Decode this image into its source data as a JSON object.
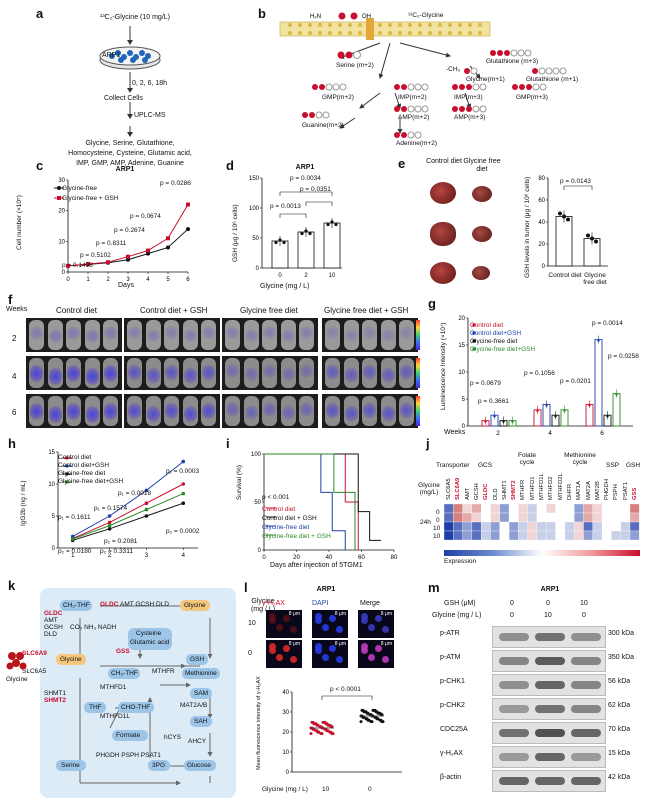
{
  "a": {
    "label": "a",
    "tracer": "¹³C₂-Glycine (10 mg/L)",
    "cell": "ARP1",
    "times": "0, 2, 6, 18h",
    "step1": "Collect Cells",
    "step2": "UPLC-MS",
    "metabolites": [
      "Glycine, Serine, Glutathione,",
      "Homocysteine, Cysteine, Glutamic acid,",
      "IMP, GMP, AMP, Adenine, Guanine"
    ]
  },
  "b": {
    "label": "b",
    "glycine_label": "¹³C₂-Glycine",
    "nodes": [
      "Serine (m+2)",
      "Glutathione (m+3)",
      "Glycine(m+1)",
      "Glutathione (m+1)",
      "GMP(m+2)",
      "IMP(m+2)",
      "IMP(m+3)",
      "GMP(m+3)",
      "AMP(m+2)",
      "AMP(m+3)",
      "Guanine(m+2)",
      "Adenine(m+2)"
    ],
    "ch3": "-CH₃"
  },
  "c": {
    "label": "c",
    "title": "ARP1",
    "legend": [
      "Glycine-free",
      "Glycine-free + GSH"
    ],
    "xlabel": "Days",
    "ylabel": "Cell number (×10⁵)",
    "pvals": [
      "p = 0.0286",
      "p = 0.0674",
      "p = 0.2674",
      "p = 0.8311",
      "p = 0.5102",
      "p = 0.1498"
    ]
  },
  "d": {
    "label": "d",
    "title": "ARP1",
    "ylabel": "GSH (μg / 10⁶ cells)",
    "xlabel": "Glycine (mg / L)",
    "pvals": [
      "p = 0.0034",
      "p = 0.0351",
      "p = 0.0013"
    ]
  },
  "e": {
    "label": "e",
    "cols": [
      "Control diet",
      "Glycine free diet"
    ],
    "ylabel": "GSH levels in tumor (μg / 10⁶ cells)",
    "pval": "p = 0.0143"
  },
  "f": {
    "label": "f",
    "weeks_label": "Weeks",
    "groups": [
      "Control diet",
      "Control diet + GSH",
      "Glycine free diet",
      "Glycine free diet + GSH"
    ],
    "rows": [
      "2",
      "4",
      "6"
    ]
  },
  "g": {
    "label": "g",
    "ylabel": "Luminescence Intensity (×10⁷)",
    "legend": [
      "Control diet",
      "Control diet+GSH",
      "Glycine-free diet",
      "Glycine-free diet+GSH"
    ],
    "weeks_label": "Weeks",
    "pvals": [
      "p = 0.0014",
      "p = 0.0258",
      "p = 0.0201",
      "p = 0.1056",
      "p = 0.0679",
      "p = 0.3661"
    ]
  },
  "h": {
    "label": "h",
    "ylabel": "IgG2b (ng / mL)",
    "legend": [
      "Control diet",
      "Control diet+GSH",
      "Glycine-free diet",
      "Glycine-free diet+GSH"
    ],
    "pvals": [
      "p₁ = 0.0003",
      "p₁ = 0.0018",
      "p₁ = 0.1574",
      "p₁ = 0.1611",
      "p₂ = 0.0002",
      "p₂ = 0.2081",
      "p₂ = 0.0180",
      "p₂ = 0.3311"
    ]
  },
  "i": {
    "label": "i",
    "ylabel": "Survival (%)",
    "xlabel": "Days after injection of 5TGM1",
    "pval": "p < 0.001",
    "legend": [
      "Control diet",
      "Control diet + GSH",
      "Glycine-free diet",
      "Glycine-free diet + GSH"
    ]
  },
  "j": {
    "label": "j",
    "groups": [
      "Transporter",
      "GCS",
      "Folate cycle",
      "Methionine cycle",
      "SSP",
      "GSH"
    ],
    "genes": [
      "SLC6A5",
      "SLC6A9",
      "AMT",
      "GCSH",
      "GLDC",
      "DLD",
      "SHMT1",
      "SHMT2",
      "MTHFR",
      "MTHFD1",
      "MTHFD1L",
      "MTHFD2",
      "MTHFD2L",
      "DHFR",
      "MAT1A",
      "MAT2A",
      "MAT2B",
      "PHGDH",
      "PSPH",
      "PSAT1",
      "GSS"
    ],
    "glycine_label": "Glycine (mg/L)",
    "rows": [
      "0",
      "0",
      "10",
      "10"
    ],
    "time": "24h",
    "expression_label": "Expression"
  },
  "k": {
    "label": "k",
    "nodes": [
      "CH₂-THF",
      "GLDC",
      "AMT GCSH DLD",
      "Glycine",
      "CO₂ NH₃ NADH",
      "Cysteine",
      "Glutamic acid",
      "SLC6A9",
      "SLC6A5",
      "GSS",
      "GSH",
      "CH₃-THF",
      "MTHFR",
      "Methionine",
      "SHMT1",
      "SHMT2",
      "MTHFD1",
      "MTHFD1L",
      "SAM",
      "THF",
      "CHO-THF",
      "MAT2A/B",
      "Formate",
      "SAH",
      "hCYS",
      "AHCY",
      "Serine",
      "PHGDH PSPH PSAT1",
      "3PG",
      "Glucose",
      "GLDC",
      "AMT",
      "GCSH",
      "DLD"
    ],
    "glycine_icon": "Glycine"
  },
  "l": {
    "label": "l",
    "title": "ARP1",
    "glycine_label": "Glycine (mg / L)",
    "cols": [
      "γ-H₂AX",
      "DAPI",
      "Merge"
    ],
    "rows": [
      "10",
      "0"
    ],
    "scale": "8 μm",
    "ylabel": "Mean fluorescence intensity of γ-H₂AX",
    "pval": "p < 0.0001",
    "xlabels": [
      "Glycine (mg / L)",
      "10",
      "0"
    ]
  },
  "m": {
    "label": "m",
    "title": "ARP1",
    "gsh_label": "GSH (μM)",
    "gly_label": "Glycine (mg / L)",
    "gsh_vals": [
      "0",
      "0",
      "10"
    ],
    "gly_vals": [
      "0",
      "10",
      "0"
    ],
    "proteins": [
      "p-ATR",
      "p-ATM",
      "p-CHK1",
      "p-CHK2",
      "CDC25A",
      "γ-H₂AX",
      "β-actin"
    ],
    "sizes": [
      "300 kDa",
      "350 kDa",
      "56 kDa",
      "62 kDa",
      "70 kDa",
      "15 kDa",
      "42 kDa"
    ]
  },
  "chart_data": [
    {
      "panel": "c",
      "type": "line",
      "title": "ARP1",
      "xlabel": "Days",
      "ylabel": "Cell number (×10⁵)",
      "x": [
        0,
        1,
        2,
        3,
        4,
        5,
        6
      ],
      "ylim": [
        0,
        30
      ],
      "series": [
        {
          "name": "Glycine-free",
          "values": [
            2,
            2.5,
            3,
            4,
            6,
            8,
            14
          ]
        },
        {
          "name": "Glycine-free + GSH",
          "values": [
            2,
            2.6,
            3.2,
            5,
            7,
            11,
            22
          ]
        }
      ]
    },
    {
      "panel": "d",
      "type": "bar",
      "title": "ARP1",
      "xlabel": "Glycine (mg / L)",
      "ylabel": "GSH (μg / 10⁶ cells)",
      "categories": [
        "0",
        "2",
        "10"
      ],
      "values": [
        45,
        60,
        75
      ],
      "ylim": [
        0,
        150
      ]
    },
    {
      "panel": "e",
      "type": "bar",
      "categories": [
        "Control diet",
        "Glycine free diet"
      ],
      "values": [
        45,
        25
      ],
      "ylim": [
        0,
        80
      ]
    },
    {
      "panel": "g",
      "type": "bar",
      "categories": [
        "2",
        "4",
        "6"
      ],
      "series": [
        {
          "name": "Control diet",
          "values": [
            1,
            3,
            4
          ]
        },
        {
          "name": "Control diet+GSH",
          "values": [
            2,
            4,
            16
          ]
        },
        {
          "name": "Glycine-free diet",
          "values": [
            1,
            2,
            2
          ]
        },
        {
          "name": "Glycine-free diet+GSH",
          "values": [
            1,
            3,
            6
          ]
        }
      ],
      "ylim": [
        0,
        20
      ]
    },
    {
      "panel": "h",
      "type": "line",
      "ylabel": "IgG2b (ng / mL)",
      "x": [
        1,
        2,
        3,
        4
      ],
      "ylim": [
        0,
        15
      ],
      "series": [
        {
          "name": "Control diet",
          "values": [
            1.5,
            4,
            7,
            10
          ]
        },
        {
          "name": "Control diet+GSH",
          "values": [
            1.8,
            5,
            9,
            13.5
          ]
        },
        {
          "name": "Glycine-free diet",
          "values": [
            1.2,
            3,
            5,
            7
          ]
        },
        {
          "name": "Glycine-free diet+GSH",
          "values": [
            1.4,
            3.5,
            6,
            8.5
          ]
        }
      ]
    },
    {
      "panel": "i",
      "type": "line",
      "ylabel": "Survival (%)",
      "xlabel": "Days after injection of 5TGM1",
      "xlim": [
        0,
        80
      ],
      "ylim": [
        0,
        100
      ],
      "series": [
        {
          "name": "Control diet",
          "values": [
            [
              0,
              100
            ],
            [
              45,
              100
            ],
            [
              50,
              50
            ],
            [
              55,
              50
            ],
            [
              58,
              0
            ]
          ]
        },
        {
          "name": "Control diet + GSH",
          "values": [
            [
              0,
              100
            ],
            [
              55,
              100
            ],
            [
              58,
              40
            ],
            [
              65,
              40
            ],
            [
              65,
              10
            ],
            [
              72,
              10
            ]
          ]
        },
        {
          "name": "Glycine-free diet",
          "values": [
            [
              0,
              100
            ],
            [
              33,
              100
            ],
            [
              35,
              60
            ],
            [
              38,
              60
            ],
            [
              42,
              20
            ],
            [
              48,
              20
            ],
            [
              50,
              0
            ]
          ]
        },
        {
          "name": "Glycine-free diet + GSH",
          "values": [
            [
              0,
              100
            ],
            [
              40,
              100
            ],
            [
              43,
              60
            ],
            [
              50,
              60
            ],
            [
              56,
              0
            ]
          ]
        }
      ]
    },
    {
      "panel": "l",
      "type": "scatter",
      "categories": [
        "10",
        "0"
      ],
      "values": [
        22,
        28
      ],
      "ylim": [
        0,
        40
      ]
    }
  ]
}
